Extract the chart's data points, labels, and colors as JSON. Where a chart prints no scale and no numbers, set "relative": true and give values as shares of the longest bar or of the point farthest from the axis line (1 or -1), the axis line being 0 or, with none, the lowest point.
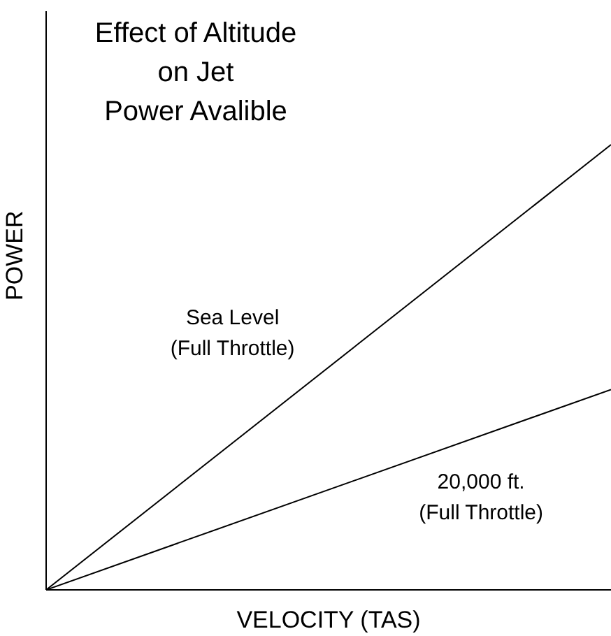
{
  "chart_data": {
    "type": "line",
    "title": "Effect of Altitude\non Jet\nPower Avalible",
    "xlabel": "VELOCITY (TAS)",
    "ylabel": "POWER",
    "relative": true,
    "categories": [
      null,
      null
    ],
    "series": [
      {
        "name": "Sea Level\n(Full Throttle)",
        "color": "#000000",
        "values": [
          0,
          1
        ]
      },
      {
        "name": "20,000 ft.\n(Full Throttle)",
        "color": "#000000",
        "values": [
          0,
          0.45
        ]
      }
    ],
    "grid": false,
    "legend": false,
    "marker": "none",
    "line_style": "solid"
  }
}
